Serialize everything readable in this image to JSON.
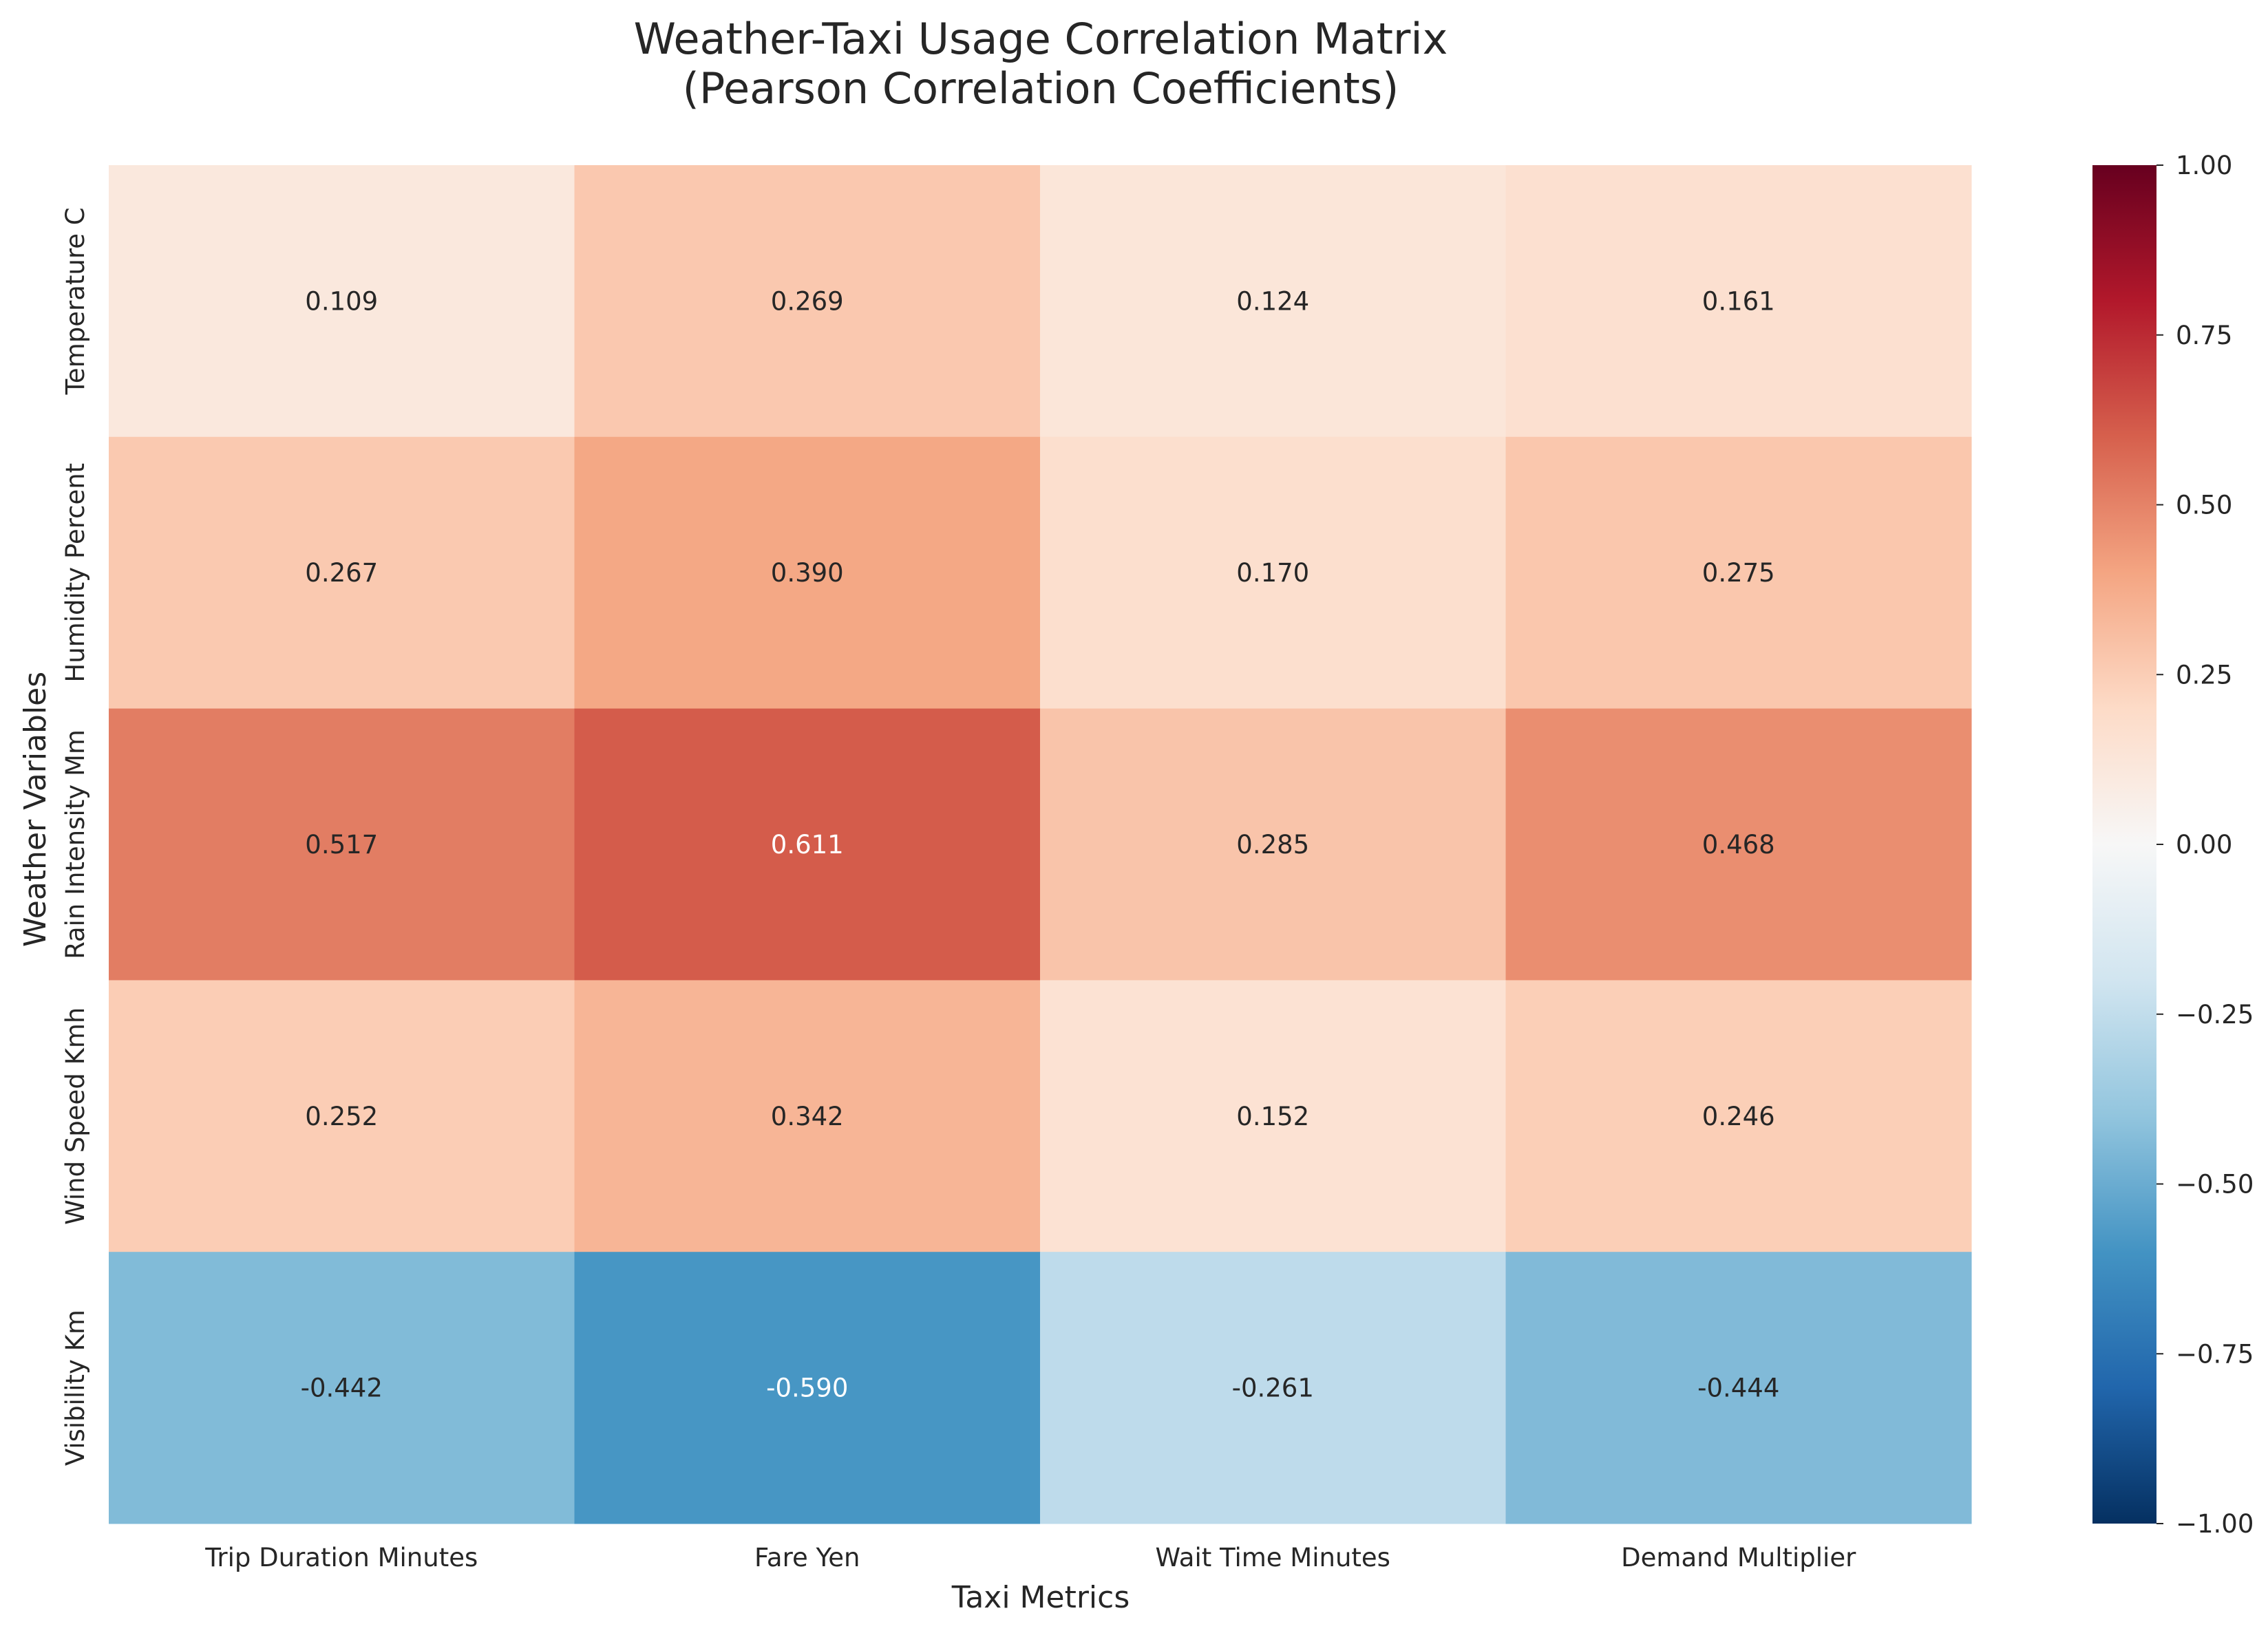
{
  "chart_data": {
    "type": "heatmap",
    "title": "Weather-Taxi Usage Correlation Matrix",
    "subtitle": "(Pearson Correlation Coefficients)",
    "xlabel": "Taxi Metrics",
    "ylabel": "Weather Variables",
    "x_categories": [
      "Trip Duration Minutes",
      "Fare Yen",
      "Wait Time Minutes",
      "Demand Multiplier"
    ],
    "y_categories": [
      "Temperature C",
      "Humidity Percent",
      "Rain Intensity Mm",
      "Wind Speed Kmh",
      "Visibility Km"
    ],
    "values": [
      [
        0.109,
        0.269,
        0.124,
        0.161
      ],
      [
        0.267,
        0.39,
        0.17,
        0.275
      ],
      [
        0.517,
        0.611,
        0.285,
        0.468
      ],
      [
        0.252,
        0.342,
        0.152,
        0.246
      ],
      [
        -0.442,
        -0.59,
        -0.261,
        -0.444
      ]
    ],
    "value_labels": [
      [
        "0.109",
        "0.269",
        "0.124",
        "0.161"
      ],
      [
        "0.267",
        "0.390",
        "0.170",
        "0.275"
      ],
      [
        "0.517",
        "0.611",
        "0.285",
        "0.468"
      ],
      [
        "0.252",
        "0.342",
        "0.152",
        "0.246"
      ],
      [
        "-0.442",
        "-0.590",
        "-0.261",
        "-0.444"
      ]
    ],
    "colormap": "RdBu_r",
    "vmin": -1.0,
    "vmax": 1.0,
    "colorbar_ticks": [
      1.0,
      0.75,
      0.5,
      0.25,
      0.0,
      -0.25,
      -0.5,
      -0.75,
      -1.0
    ],
    "colorbar_tick_labels": [
      "1.00",
      "0.75",
      "0.50",
      "0.25",
      "0.00",
      "−0.25",
      "−0.50",
      "−0.75",
      "−1.00"
    ],
    "grid": false,
    "colorbar_position": "right"
  }
}
